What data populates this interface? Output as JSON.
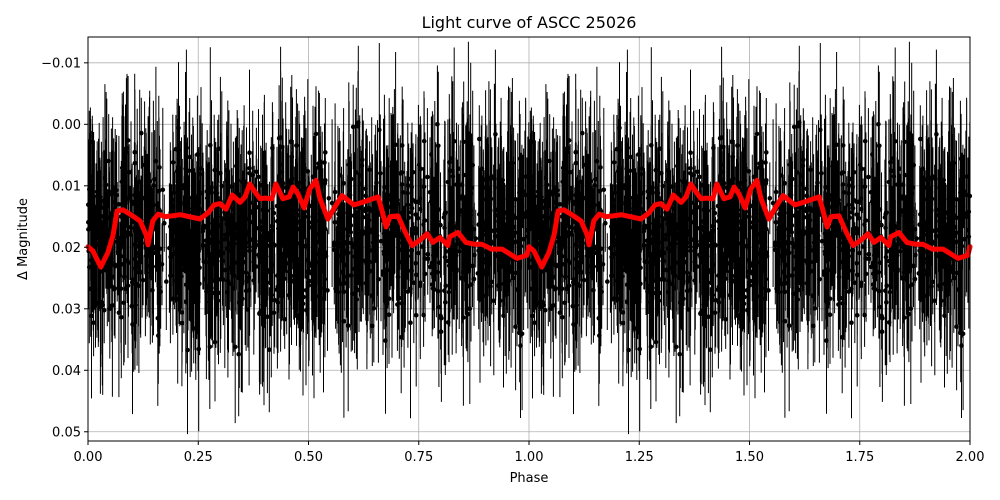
{
  "chart_data": {
    "type": "scatter",
    "title": "Light curve of ASCC 25026",
    "xlabel": "Phase",
    "ylabel": "Δ Magnitude",
    "xlim": [
      0.0,
      2.0
    ],
    "ylim": [
      0.0515,
      -0.0142
    ],
    "y_inverted": true,
    "grid": true,
    "legend": null,
    "x_ticks": [
      0.0,
      0.25,
      0.5,
      0.75,
      1.0,
      1.25,
      1.5,
      1.75,
      2.0
    ],
    "x_tick_labels": [
      "0.00",
      "0.25",
      "0.50",
      "0.75",
      "1.00",
      "1.25",
      "1.50",
      "1.75",
      "2.00"
    ],
    "y_ticks": [
      -0.01,
      0.0,
      0.01,
      0.02,
      0.03,
      0.04,
      0.05
    ],
    "y_tick_labels": [
      "−0.01",
      "0.00",
      "0.01",
      "0.02",
      "0.03",
      "0.04",
      "0.05"
    ],
    "series": [
      {
        "name": "observations",
        "type": "errorbar-scatter",
        "color": "#000000",
        "description": "Dense phase-folded photometry with error bars, scatter roughly from -0.015 to 0.052 mag, folded twice (phase 0-1 repeated at 1-2)"
      },
      {
        "name": "binned curve",
        "type": "line",
        "color": "#ff0000",
        "period_repeat": true,
        "x": [
          0.0,
          0.011,
          0.029,
          0.045,
          0.057,
          0.066,
          0.079,
          0.095,
          0.118,
          0.132,
          0.136,
          0.147,
          0.159,
          0.175,
          0.191,
          0.209,
          0.254,
          0.272,
          0.286,
          0.299,
          0.313,
          0.327,
          0.345,
          0.356,
          0.367,
          0.379,
          0.39,
          0.401,
          0.417,
          0.426,
          0.442,
          0.456,
          0.465,
          0.476,
          0.49,
          0.503,
          0.517,
          0.526,
          0.544,
          0.56,
          0.576,
          0.603,
          0.626,
          0.658,
          0.667,
          0.676,
          0.685,
          0.703,
          0.719,
          0.735,
          0.753,
          0.769,
          0.782,
          0.798,
          0.816,
          0.82,
          0.839,
          0.857,
          0.876,
          0.893,
          0.915,
          0.939,
          0.973,
          0.995,
          1.0
        ],
        "y": [
          0.0199,
          0.0206,
          0.0232,
          0.0209,
          0.018,
          0.0141,
          0.0139,
          0.0146,
          0.0157,
          0.018,
          0.0196,
          0.0157,
          0.0146,
          0.015,
          0.0149,
          0.0147,
          0.0154,
          0.0144,
          0.0131,
          0.0129,
          0.0138,
          0.0115,
          0.0127,
          0.0118,
          0.0097,
          0.011,
          0.0121,
          0.012,
          0.0121,
          0.0097,
          0.0121,
          0.0118,
          0.0102,
          0.0113,
          0.0136,
          0.0105,
          0.0091,
          0.0121,
          0.0154,
          0.0134,
          0.0116,
          0.0131,
          0.0126,
          0.0118,
          0.0141,
          0.0167,
          0.015,
          0.0149,
          0.0175,
          0.0197,
          0.0188,
          0.0178,
          0.0192,
          0.0184,
          0.0197,
          0.0183,
          0.0176,
          0.0192,
          0.0195,
          0.0195,
          0.0203,
          0.0203,
          0.0218,
          0.0213,
          0.0199
        ]
      }
    ]
  }
}
